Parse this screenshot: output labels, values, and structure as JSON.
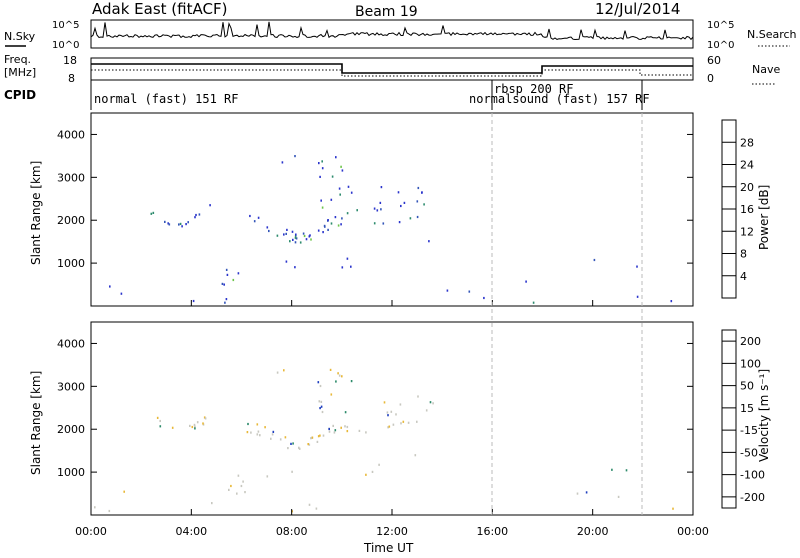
{
  "header": {
    "site": "Adak East (fitACF)",
    "beam": "Beam 19",
    "date": "12/Jul/2014"
  },
  "top_panels": {
    "nsky_label": "N.Sky",
    "nsky_ticks": [
      "10^5",
      "10^0"
    ],
    "nsearch_label": "N.Search",
    "nsearch_ticks": [
      "10^5",
      "10^0"
    ],
    "freq_label": "Freq.",
    "freq_unit": "[MHz]",
    "freq_ticks": [
      "18",
      "8"
    ],
    "nave_label": "Nave",
    "nave_ticks": [
      "60",
      "0"
    ],
    "cpid_label": "CPID",
    "cpid_segments": [
      {
        "label": "normal (fast) 151 RF",
        "start_h": 0,
        "end_h": 16
      },
      {
        "label": "rbsp 200 RF",
        "start_h": 16,
        "end_h": 16
      },
      {
        "label": "normalsound (fast) 157 RF",
        "start_h": 16,
        "end_h": 22
      }
    ]
  },
  "chart_data": [
    {
      "type": "heatmap",
      "name": "power",
      "ylabel": "Slant Range [km]",
      "yticks": [
        "1000",
        "2000",
        "3000",
        "4000"
      ],
      "ylim": [
        0,
        4500
      ],
      "xlim": [
        0,
        24
      ],
      "colorbar_label": "Power [dB]",
      "colorbar_ticks": [
        "4",
        "8",
        "12",
        "16",
        "20",
        "24",
        "28"
      ],
      "colors": [
        "#2b35cc",
        "#3355b8",
        "#2e8c6e",
        "#6dc44a",
        "#e6c21e",
        "#f08d18",
        "#e03a16",
        "#cc1010"
      ]
    },
    {
      "type": "heatmap",
      "name": "velocity",
      "ylabel": "Slant Range [km]",
      "yticks": [
        "1000",
        "2000",
        "3000",
        "4000"
      ],
      "ylim": [
        0,
        4500
      ],
      "xlim": [
        0,
        24
      ],
      "xlabel": "Time UT",
      "xticks": [
        "00:00",
        "04:00",
        "08:00",
        "12:00",
        "16:00",
        "20:00",
        "00:00"
      ],
      "colorbar_label": "Velocity [m s⁻¹]",
      "colorbar_ticks": [
        "200",
        "100",
        "50",
        "15",
        "-15",
        "-50",
        "-100",
        "-200"
      ],
      "colors": [
        "#1f3fbf",
        "#2e72b0",
        "#2c8a6a",
        "#7ccc3c",
        "#c8c8c0",
        "#e8b838",
        "#f39020",
        "#e65818",
        "#dd1010"
      ]
    }
  ]
}
